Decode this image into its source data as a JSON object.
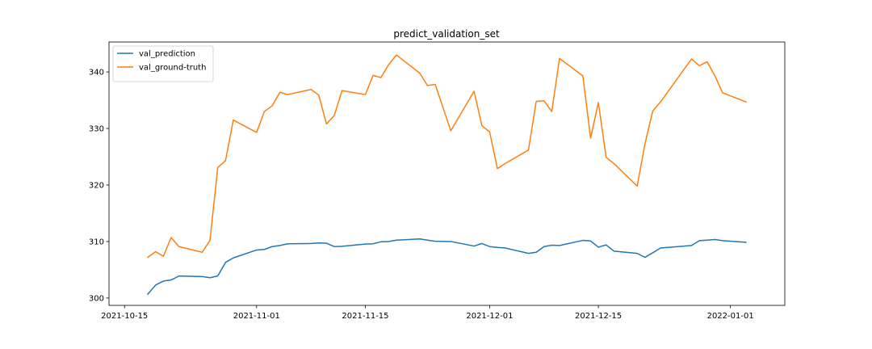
{
  "chart_data": {
    "type": "line",
    "title": "predict_validation_set",
    "xlabel": "",
    "ylabel": "",
    "x_type": "date",
    "xlim": [
      "2021-10-13",
      "2022-01-08"
    ],
    "ylim": [
      298.7,
      345.3
    ],
    "x_ticks": [
      "2021-10-15",
      "2021-11-01",
      "2021-11-15",
      "2021-12-01",
      "2021-12-15",
      "2022-01-01"
    ],
    "y_ticks": [
      300,
      310,
      320,
      330,
      340
    ],
    "grid": false,
    "legend_position": "upper-left",
    "series": [
      {
        "name": "val_prediction",
        "color": "#1f77b4",
        "x": [
          "2021-10-18",
          "2021-10-19",
          "2021-10-20",
          "2021-10-21",
          "2021-10-22",
          "2021-10-25",
          "2021-10-26",
          "2021-10-27",
          "2021-10-28",
          "2021-10-29",
          "2021-11-01",
          "2021-11-02",
          "2021-11-03",
          "2021-11-04",
          "2021-11-05",
          "2021-11-08",
          "2021-11-09",
          "2021-11-10",
          "2021-11-11",
          "2021-11-12",
          "2021-11-15",
          "2021-11-16",
          "2021-11-17",
          "2021-11-18",
          "2021-11-19",
          "2021-11-22",
          "2021-11-23",
          "2021-11-24",
          "2021-11-26",
          "2021-11-29",
          "2021-11-30",
          "2021-12-01",
          "2021-12-02",
          "2021-12-03",
          "2021-12-06",
          "2021-12-07",
          "2021-12-08",
          "2021-12-09",
          "2021-12-10",
          "2021-12-13",
          "2021-12-14",
          "2021-12-15",
          "2021-12-16",
          "2021-12-17",
          "2021-12-20",
          "2021-12-21",
          "2021-12-22",
          "2021-12-23",
          "2021-12-27",
          "2021-12-28",
          "2021-12-29",
          "2021-12-30",
          "2021-12-31",
          "2022-01-03"
        ],
        "values": [
          300.7,
          302.3,
          303.0,
          303.2,
          303.9,
          303.8,
          303.6,
          303.9,
          306.3,
          307.1,
          308.5,
          308.6,
          309.1,
          309.3,
          309.6,
          309.65,
          309.75,
          309.7,
          309.1,
          309.15,
          309.55,
          309.6,
          309.95,
          310.0,
          310.25,
          310.45,
          310.25,
          310.05,
          310.0,
          309.2,
          309.65,
          309.1,
          308.95,
          308.85,
          307.9,
          308.1,
          309.1,
          309.35,
          309.3,
          310.2,
          310.1,
          309.0,
          309.4,
          308.3,
          307.9,
          307.2,
          308.0,
          308.85,
          309.3,
          310.15,
          310.25,
          310.35,
          310.15,
          309.85
        ]
      },
      {
        "name": "val_ground-truth",
        "color": "#ff7f0e",
        "x": [
          "2021-10-18",
          "2021-10-19",
          "2021-10-20",
          "2021-10-21",
          "2021-10-22",
          "2021-10-25",
          "2021-10-26",
          "2021-10-27",
          "2021-10-28",
          "2021-10-29",
          "2021-11-01",
          "2021-11-02",
          "2021-11-03",
          "2021-11-04",
          "2021-11-05",
          "2021-11-08",
          "2021-11-09",
          "2021-11-10",
          "2021-11-11",
          "2021-11-12",
          "2021-11-15",
          "2021-11-16",
          "2021-11-17",
          "2021-11-18",
          "2021-11-19",
          "2021-11-22",
          "2021-11-23",
          "2021-11-24",
          "2021-11-26",
          "2021-11-29",
          "2021-11-30",
          "2021-12-01",
          "2021-12-02",
          "2021-12-03",
          "2021-12-06",
          "2021-12-07",
          "2021-12-08",
          "2021-12-09",
          "2021-12-10",
          "2021-12-13",
          "2021-12-14",
          "2021-12-15",
          "2021-12-16",
          "2021-12-17",
          "2021-12-20",
          "2021-12-21",
          "2021-12-22",
          "2021-12-23",
          "2021-12-27",
          "2021-12-28",
          "2021-12-29",
          "2021-12-30",
          "2021-12-31",
          "2022-01-03"
        ],
        "values": [
          307.2,
          308.2,
          307.4,
          310.7,
          309.1,
          308.1,
          310.2,
          323.1,
          324.3,
          331.5,
          329.3,
          333.0,
          334.0,
          336.4,
          336.0,
          336.9,
          335.9,
          330.8,
          332.3,
          336.7,
          336.0,
          339.4,
          339.0,
          341.3,
          343.0,
          339.8,
          337.6,
          337.8,
          329.6,
          336.6,
          330.5,
          329.4,
          322.9,
          323.8,
          326.2,
          334.8,
          334.9,
          333.0,
          342.4,
          339.3,
          328.3,
          334.6,
          324.9,
          323.8,
          319.8,
          327.3,
          333.1,
          334.7,
          342.3,
          341.1,
          341.8,
          339.3,
          336.3,
          334.7
        ]
      }
    ]
  }
}
